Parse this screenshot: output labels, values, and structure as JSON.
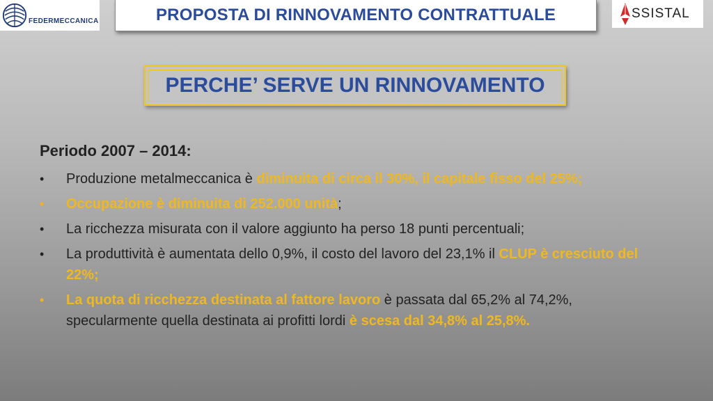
{
  "header": {
    "left_logo_text": "FEDERMECCANICA",
    "title": "PROPOSTA DI RINNOVAMENTO CONTRATTUALE",
    "right_logo_text": "SSISTAL"
  },
  "section_title": "PERCHE’ SERVE UN RINNOVAMENTO",
  "period": "Periodo 2007 – 2014:",
  "bullets": [
    {
      "text": "Produzione metalmeccanica è ",
      "highlight": "diminuita di circa il 30%, il capitale fisso del 25%;",
      "after": ""
    },
    {
      "text": "",
      "highlight": "Occupazione è diminuita di 252.000 unità",
      "after": ";"
    },
    {
      "text": "La ricchezza misurata con il valore aggiunto ha perso 18 punti percentuali;"
    },
    {
      "text": "La produttività è aumentata dello 0,9%, il costo del lavoro del 23,1% il ",
      "highlight": "CLUP è cresciuto del 22%;"
    },
    {
      "highlight": "La quota di ricchezza destinata al fattore lavoro",
      "text": " è passata dal 65,2% al 74,2%, specularmente quella destinata ai profitti lordi ",
      "highlight2": "è scesa dal 34,8% al 25,8%."
    }
  ],
  "colors": {
    "title_blue": "#2b4b9b",
    "highlight_yellow": "#f0b81f",
    "frame_yellow": "#f2c618"
  }
}
